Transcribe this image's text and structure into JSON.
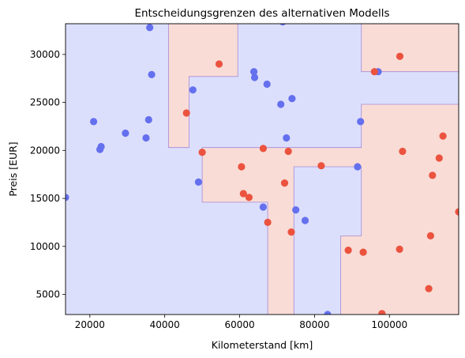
{
  "chart_data": {
    "type": "scatter",
    "title": "Entscheidungsgrenzen des alternativen Modells",
    "xlabel": "Kilometerstand [km]",
    "ylabel": "Preis [EUR]",
    "xlim": [
      13500,
      118500
    ],
    "ylim": [
      2900,
      33200
    ],
    "xticks": [
      20000,
      40000,
      60000,
      80000,
      100000
    ],
    "yticks": [
      5000,
      10000,
      15000,
      20000,
      25000,
      30000
    ],
    "xtick_labels": [
      "20000",
      "40000",
      "60000",
      "80000",
      "100000"
    ],
    "ytick_labels": [
      "5000",
      "10000",
      "15000",
      "20000",
      "25000",
      "30000"
    ],
    "grid": false,
    "legend": "none",
    "colors": {
      "class_blue_point": "#6470ee",
      "class_red_point": "#eb533f",
      "region_blue": "#dcdffc",
      "region_red": "#f9dcd6",
      "boundary": "#a58ad8"
    },
    "regions_red": [
      [
        [
          41000,
          33200
        ],
        [
          59500,
          33200
        ],
        [
          59500,
          27700
        ],
        [
          46500,
          27700
        ],
        [
          46500,
          20300
        ],
        [
          41000,
          20300
        ]
      ],
      [
        [
          50000,
          20300
        ],
        [
          92500,
          20300
        ],
        [
          92500,
          24800
        ],
        [
          118500,
          24800
        ],
        [
          118500,
          2900
        ],
        [
          87000,
          2900
        ],
        [
          87000,
          11100
        ],
        [
          92500,
          11100
        ],
        [
          92500,
          18300
        ],
        [
          74500,
          18300
        ],
        [
          74500,
          2900
        ],
        [
          67500,
          2900
        ],
        [
          67500,
          14600
        ],
        [
          50000,
          14600
        ]
      ],
      [
        [
          92500,
          33200
        ],
        [
          118500,
          33200
        ],
        [
          118500,
          28200
        ],
        [
          92500,
          28200
        ]
      ]
    ],
    "series": [
      {
        "class": "blue",
        "points": [
          [
            13500,
            15100
          ],
          [
            21000,
            23000
          ],
          [
            22700,
            20100
          ],
          [
            23000,
            20400
          ],
          [
            29500,
            21800
          ],
          [
            35000,
            21300
          ],
          [
            35700,
            23200
          ],
          [
            36000,
            32800
          ],
          [
            36500,
            27900
          ],
          [
            47500,
            26300
          ],
          [
            49000,
            16700
          ],
          [
            63800,
            28200
          ],
          [
            64000,
            27600
          ],
          [
            66300,
            14100
          ],
          [
            67300,
            26900
          ],
          [
            71000,
            24800
          ],
          [
            71500,
            33400
          ],
          [
            72500,
            21300
          ],
          [
            74000,
            25400
          ],
          [
            75000,
            13800
          ],
          [
            77500,
            12700
          ],
          [
            83500,
            2900
          ],
          [
            91500,
            18300
          ],
          [
            92300,
            23000
          ],
          [
            97000,
            28200
          ]
        ]
      },
      {
        "class": "red",
        "points": [
          [
            45800,
            23900
          ],
          [
            50000,
            19800
          ],
          [
            54500,
            29000
          ],
          [
            60500,
            18300
          ],
          [
            61000,
            15500
          ],
          [
            62500,
            15100
          ],
          [
            66300,
            20200
          ],
          [
            67500,
            12500
          ],
          [
            72000,
            16600
          ],
          [
            73000,
            19900
          ],
          [
            73800,
            11500
          ],
          [
            81800,
            18400
          ],
          [
            89000,
            9600
          ],
          [
            93000,
            9400
          ],
          [
            96000,
            28200
          ],
          [
            98000,
            3000
          ],
          [
            102700,
            9700
          ],
          [
            102800,
            29800
          ],
          [
            103500,
            19900
          ],
          [
            110500,
            5600
          ],
          [
            111000,
            11100
          ],
          [
            111500,
            17400
          ],
          [
            113300,
            19200
          ],
          [
            114300,
            21500
          ],
          [
            118500,
            13600
          ]
        ]
      }
    ]
  }
}
